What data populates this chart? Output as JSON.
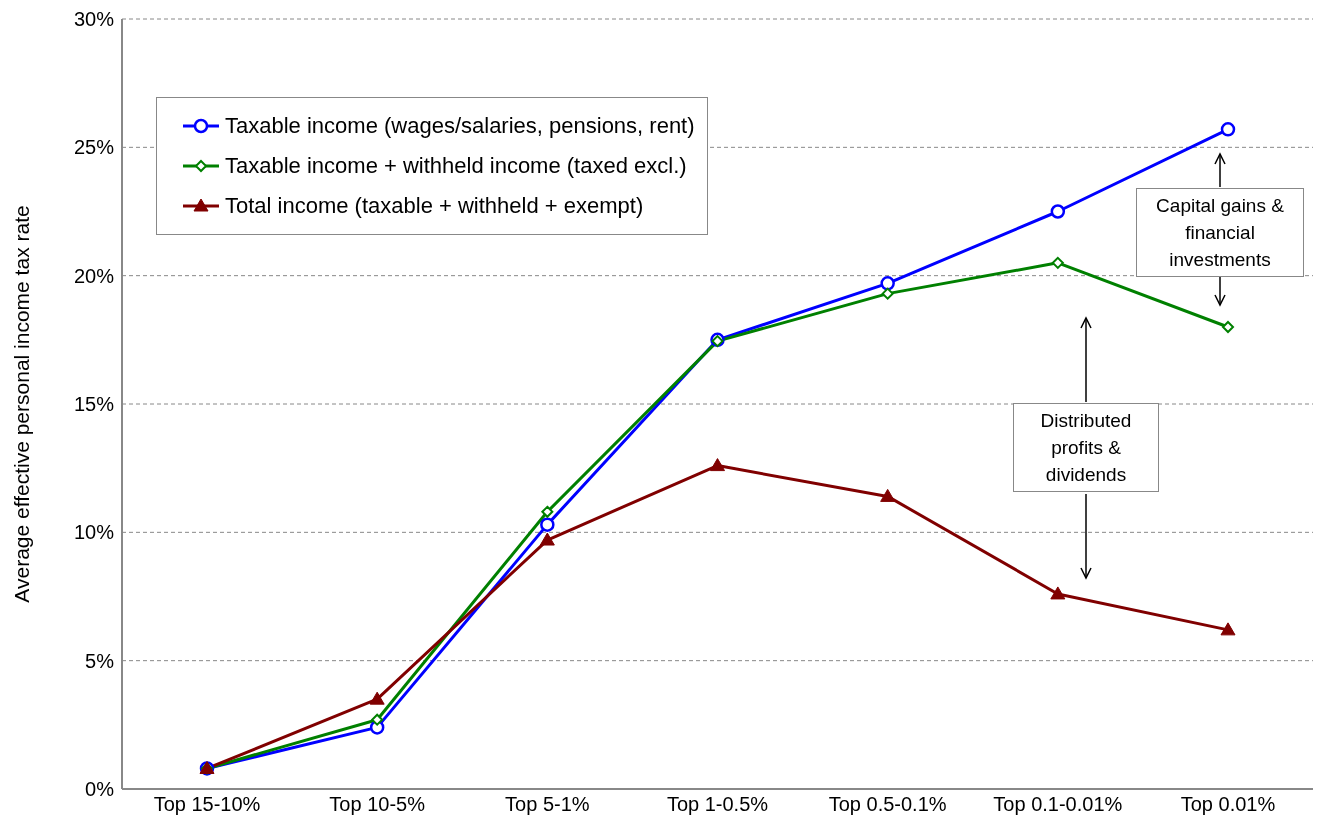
{
  "chart_data": {
    "type": "line",
    "ylabel": "Average effective personal income tax rate",
    "categories": [
      "Top 15-10%",
      "Top 10-5%",
      "Top 5-1%",
      "Top 1-0.5%",
      "Top 0.5-0.1%",
      "Top 0.1-0.01%",
      "Top 0.01%"
    ],
    "series": [
      {
        "name": "Taxable income (wages/salaries, pensions, rent)",
        "color": "#0000ff",
        "marker": "circle",
        "values": [
          0.8,
          2.4,
          10.3,
          17.5,
          19.7,
          22.5,
          25.7
        ]
      },
      {
        "name": "Taxable income + withheld income (taxed excl.)",
        "color": "#008000",
        "marker": "diamond",
        "values": [
          0.8,
          2.7,
          10.8,
          17.45,
          19.3,
          20.5,
          18.0
        ]
      },
      {
        "name": "Total income (taxable + withheld + exempt)",
        "color": "#800000",
        "marker": "triangle",
        "values": [
          0.8,
          3.5,
          9.7,
          12.6,
          11.4,
          7.6,
          6.2
        ]
      }
    ],
    "ylim": [
      0,
      30
    ],
    "yticks": [
      {
        "value": 0,
        "label": "0%"
      },
      {
        "value": 5,
        "label": "5%"
      },
      {
        "value": 10,
        "label": "10%"
      },
      {
        "value": 15,
        "label": "15%"
      },
      {
        "value": 20,
        "label": "20%"
      },
      {
        "value": 25,
        "label": "25%"
      },
      {
        "value": 30,
        "label": "30%"
      }
    ],
    "grid": "y",
    "legend": "top left",
    "line_style": "solid",
    "annotations": [
      "Capital gains & financial investments",
      "Distributed profits & dividends"
    ]
  }
}
